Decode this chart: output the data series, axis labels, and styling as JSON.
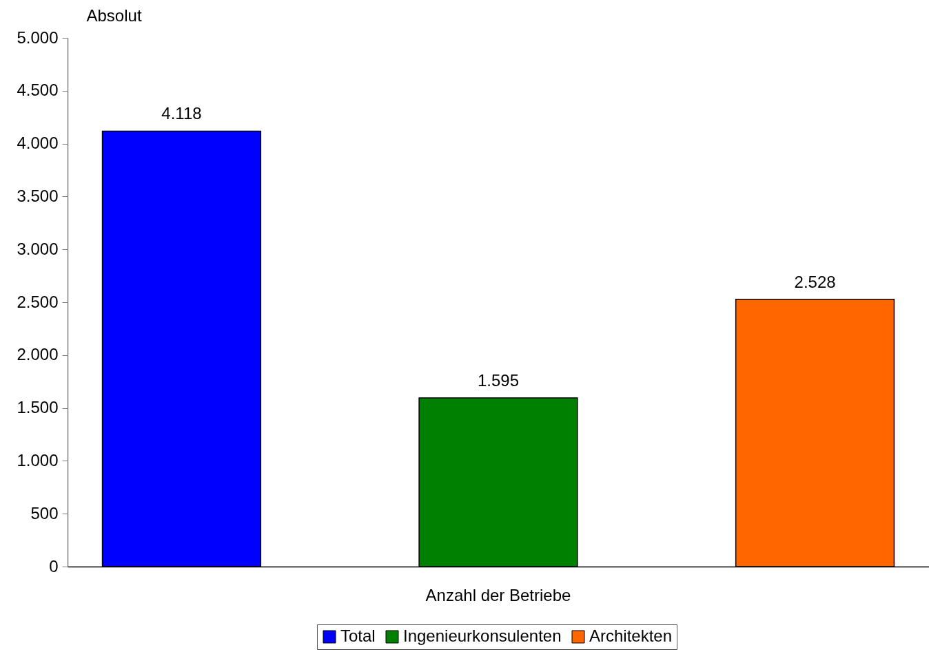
{
  "chart_data": {
    "type": "bar",
    "categories": [
      "Anzahl der Betriebe"
    ],
    "series": [
      {
        "name": "Total",
        "color": "#0000ff",
        "values": [
          4118
        ],
        "value_labels": [
          "4.118"
        ]
      },
      {
        "name": "Ingenieurkonsulenten",
        "color": "#008000",
        "values": [
          1595
        ],
        "value_labels": [
          "1.595"
        ]
      },
      {
        "name": "Architekten",
        "color": "#ff6600",
        "values": [
          2528
        ],
        "value_labels": [
          "2.528"
        ]
      }
    ],
    "ylabel": "Absolut",
    "ylim": [
      0,
      5000
    ],
    "yticks": [
      0,
      {
        "value": 500,
        "label": "500"
      },
      {
        "value": 1000,
        "label": "1.000"
      },
      {
        "value": 1500,
        "label": "1.500"
      },
      {
        "value": 2000,
        "label": "2.000"
      },
      {
        "value": 2500,
        "label": "2.500"
      },
      {
        "value": 3000,
        "label": "3.000"
      },
      {
        "value": 3500,
        "label": "3.500"
      },
      {
        "value": 4000,
        "label": "4.000"
      },
      {
        "value": 4500,
        "label": "4.500"
      },
      {
        "value": 5000,
        "label": "5.000"
      }
    ],
    "legend": "bottom"
  }
}
